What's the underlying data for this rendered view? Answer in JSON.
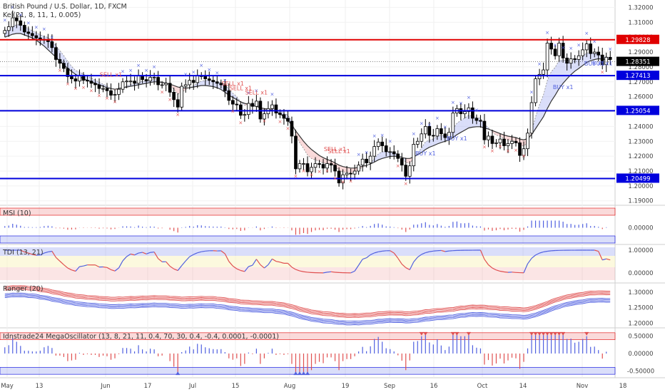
{
  "title": "British Pound / U.S. Dollar, 1D, FXCM",
  "colors": {
    "up": "#000000",
    "down": "#000000",
    "hline_red": "#e00000",
    "hline_blue": "#0000dd",
    "signal_red": "#e05050",
    "signal_blue": "#5060e0",
    "cloud_red": "rgba(240,150,150,0.35)",
    "cloud_blue": "rgba(150,160,240,0.35)",
    "price_tag": "#000000"
  },
  "chart_data": [
    {
      "type": "candlestick",
      "pane": "price",
      "indicator_label": "Kel(21, 8, 11, 1, 0.005)",
      "ylim": [
        1.187,
        1.325
      ],
      "yticks": [
        "1.32000",
        "1.31000",
        "1.30000",
        "1.29000",
        "1.28000",
        "1.27000",
        "1.26000",
        "1.25000",
        "1.24000",
        "1.23000",
        "1.22000",
        "1.21000",
        "1.20000",
        "1.19000"
      ],
      "yticks_values": [
        1.32,
        1.31,
        1.3,
        1.29,
        1.28,
        1.27,
        1.26,
        1.25,
        1.24,
        1.23,
        1.22,
        1.21,
        1.2,
        1.19
      ],
      "x_labels": [
        "May",
        "13",
        "Jun",
        "17",
        "Jul",
        "15",
        "Aug",
        "19",
        "Sep",
        "16",
        "Oct",
        "14",
        "Nov",
        "18"
      ],
      "hlines": [
        {
          "value": 1.29828,
          "label": "1.29828",
          "color": "red"
        },
        {
          "value": 1.27413,
          "label": "1.27413",
          "color": "blue"
        },
        {
          "value": 1.25054,
          "label": "1.25054",
          "color": "blue"
        },
        {
          "value": 1.20499,
          "label": "1.20499",
          "color": "blue"
        }
      ],
      "last_price": {
        "value": 1.28351,
        "label": "1.28351"
      },
      "closes": [
        1.3045,
        1.307,
        1.313,
        1.311,
        1.308,
        1.3035,
        1.3025,
        1.301,
        1.2995,
        1.298,
        1.2985,
        1.297,
        1.293,
        1.285,
        1.2825,
        1.279,
        1.2735,
        1.272,
        1.2705,
        1.274,
        1.271,
        1.2705,
        1.269,
        1.268,
        1.2655,
        1.2655,
        1.264,
        1.261,
        1.2615,
        1.265,
        1.27,
        1.2705,
        1.2705,
        1.269,
        1.274,
        1.2715,
        1.2705,
        1.273,
        1.273,
        1.268,
        1.268,
        1.269,
        1.263,
        1.258,
        1.253,
        1.267,
        1.268,
        1.271,
        1.2695,
        1.274,
        1.274,
        1.272,
        1.271,
        1.27,
        1.269,
        1.268,
        1.264,
        1.2575,
        1.255,
        1.2545,
        1.2475,
        1.248,
        1.2555,
        1.2535,
        1.257,
        1.245,
        1.2485,
        1.252,
        1.2545,
        1.249,
        1.248,
        1.2455,
        1.2435,
        1.2335,
        1.2115,
        1.215,
        1.215,
        1.2095,
        1.2125,
        1.215,
        1.2145,
        1.212,
        1.215,
        1.214,
        1.21,
        1.202,
        1.2075,
        1.2085,
        1.208,
        1.21,
        1.214,
        1.218,
        1.2155,
        1.22,
        1.2265,
        1.2295,
        1.227,
        1.223,
        1.223,
        1.2215,
        1.2185,
        1.214,
        1.2065,
        1.2135,
        1.228,
        1.23,
        1.235,
        1.24,
        1.234,
        1.2335,
        1.2385,
        1.235,
        1.2325,
        1.236,
        1.249,
        1.252,
        1.2485,
        1.25,
        1.2525,
        1.2455,
        1.244,
        1.2435,
        1.231,
        1.2335,
        1.2285,
        1.229,
        1.2315,
        1.227,
        1.2285,
        1.23,
        1.229,
        1.2205,
        1.225,
        1.2355,
        1.256,
        1.272,
        1.275,
        1.278,
        1.296,
        1.292,
        1.2875,
        1.296,
        1.286,
        1.2825,
        1.2855,
        1.285,
        1.2875,
        1.2915,
        1.2955,
        1.289,
        1.29,
        1.288,
        1.2815,
        1.2865,
        1.285
      ],
      "kel_mid": [
        1.3,
        1.301,
        1.302,
        1.3025,
        1.3025,
        1.3015,
        1.3005,
        1.2995,
        1.298,
        1.296,
        1.294,
        1.2915,
        1.289,
        1.2865,
        1.284,
        1.2815,
        1.279,
        1.277,
        1.275,
        1.2735,
        1.272,
        1.271,
        1.27,
        1.269,
        1.268,
        1.267,
        1.266,
        1.2655,
        1.265,
        1.2655,
        1.266,
        1.2665,
        1.267,
        1.2675,
        1.268,
        1.2685,
        1.269,
        1.2695,
        1.27,
        1.27,
        1.2695,
        1.269,
        1.2685,
        1.2675,
        1.2665,
        1.266,
        1.2658,
        1.266,
        1.2665,
        1.267,
        1.2675,
        1.2675,
        1.2672,
        1.2668,
        1.266,
        1.2648,
        1.263,
        1.261,
        1.2595,
        1.258,
        1.2565,
        1.2555,
        1.2548,
        1.254,
        1.2535,
        1.2525,
        1.252,
        1.2515,
        1.251,
        1.25,
        1.2485,
        1.2465,
        1.244,
        1.241,
        1.237,
        1.2335,
        1.23,
        1.227,
        1.2245,
        1.2225,
        1.2205,
        1.219,
        1.2178,
        1.2168,
        1.2155,
        1.214,
        1.213,
        1.2125,
        1.212,
        1.212,
        1.2125,
        1.2132,
        1.2138,
        1.2148,
        1.216,
        1.2175,
        1.2185,
        1.2192,
        1.2198,
        1.22,
        1.2198,
        1.2192,
        1.2185,
        1.2185,
        1.2195,
        1.221,
        1.2225,
        1.2245,
        1.226,
        1.227,
        1.2282,
        1.2292,
        1.23,
        1.231,
        1.2325,
        1.2345,
        1.236,
        1.2375,
        1.239,
        1.2395,
        1.2398,
        1.2398,
        1.239,
        1.2382,
        1.2372,
        1.2362,
        1.2352,
        1.2342,
        1.2335,
        1.233,
        1.2325,
        1.2315,
        1.231,
        1.2318,
        1.2345,
        1.2385,
        1.2425,
        1.2465,
        1.252,
        1.257,
        1.261,
        1.2655,
        1.269,
        1.272,
        1.2748,
        1.2772,
        1.279,
        1.281,
        1.283,
        1.2842,
        1.285,
        1.2855,
        1.2852,
        1.2852,
        1.285
      ]
    },
    {
      "type": "bar",
      "pane": "MSI",
      "label": "MSI (10)",
      "ylim": [
        -0.06,
        0.06
      ],
      "yticks": [
        "0.00000"
      ]
    },
    {
      "type": "line",
      "pane": "TDI",
      "label": "TDI (13, 21)",
      "ylim": [
        -0.2,
        1.2
      ],
      "yticks": [
        "1.00000",
        "0.00000"
      ]
    },
    {
      "type": "line",
      "pane": "Ranger",
      "label": "Ranger (20)",
      "ylim": [
        1.185,
        1.325
      ],
      "yticks": [
        "1.30000",
        "1.25000",
        "1.20000"
      ]
    },
    {
      "type": "bar",
      "pane": "MegaOscillator",
      "label": "Idnstrade24 MegaOscillator (13, 8, 21, 11, 0.4, 70, 30, 0.4, -0.4, 0.0001, -0.0001)",
      "ylim": [
        -0.7,
        0.7
      ],
      "yticks": [
        "0.50000",
        "0.00000",
        "-0.50000"
      ]
    }
  ],
  "signals": {
    "sell": "SELL x1",
    "buy": "BUY x1",
    "sell_idx": [
      27,
      58,
      60,
      64,
      84,
      85
    ],
    "buy_idx": [
      107,
      115,
      142,
      150,
      152
    ]
  }
}
